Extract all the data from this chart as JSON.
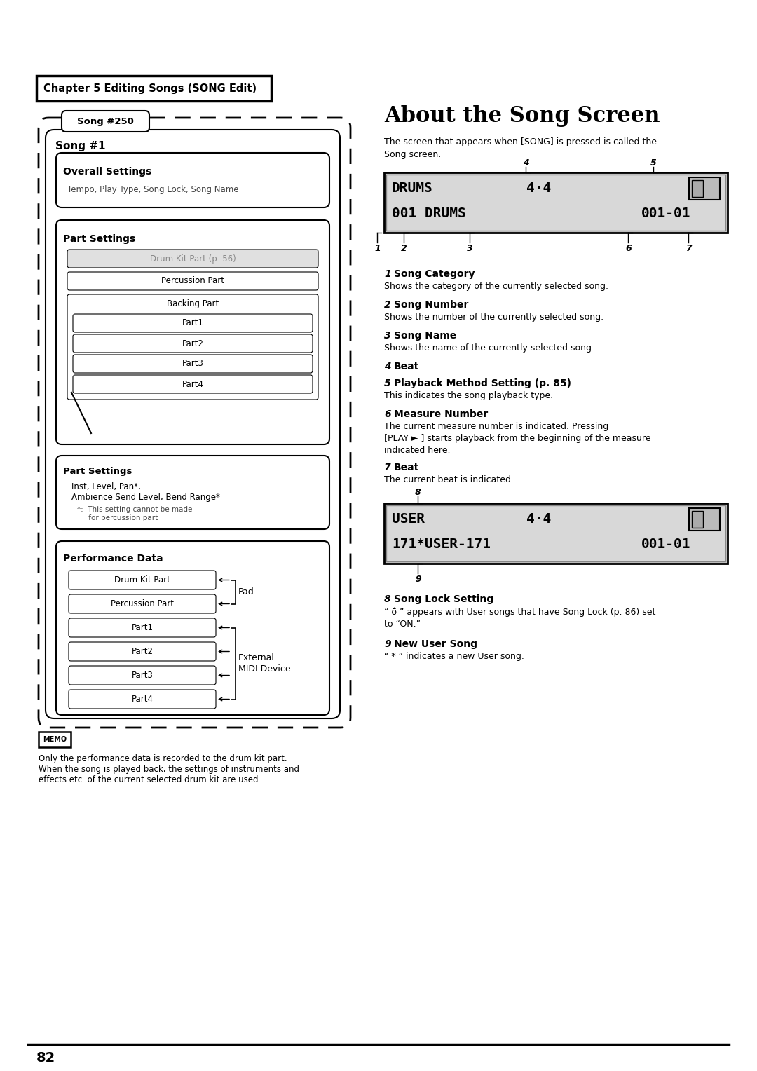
{
  "chapter_header": "Chapter 5 Editing Songs (SONG Edit)",
  "page_number": "82",
  "about_title": "About the Song Screen",
  "about_intro": "The screen that appears when [SONG] is pressed is called the\nSong screen.",
  "song250_label": "Song #250",
  "song1_label": "Song #1",
  "overall_settings_label": "Overall Settings",
  "overall_settings_content": "Tempo, Play Type, Song Lock, Song Name",
  "part_settings_label": "Part Settings",
  "part_settings_boxes_gray": "Drum Kit Part (p. 56)",
  "part_settings_boxes": [
    "Percussion Part",
    "Backing Part",
    "Part1",
    "Part2",
    "Part3",
    "Part4"
  ],
  "part_settings_note_label": "Part Settings",
  "part_settings_note_content": "Inst, Level, Pan*,\nAmbience Send Level, Bend Range*",
  "part_settings_asterisk": "*:  This setting cannot be made\n     for percussion part",
  "performance_data_label": "Performance Data",
  "performance_data_boxes": [
    "Drum Kit Part",
    "Percussion Part",
    "Part1",
    "Part2",
    "Part3",
    "Part4"
  ],
  "pad_label": "Pad",
  "external_midi_label": "External\nMIDI Device",
  "memo_text": "Only the performance data is recorded to the drum kit part.\nWhen the song is played back, the settings of instruments and\neffects etc. of the current selected drum kit are used.",
  "items": [
    {
      "num": "1",
      "title": "Song Category",
      "desc": "Shows the category of the currently selected song.",
      "lines": 1
    },
    {
      "num": "2",
      "title": "Song Number",
      "desc": "Shows the number of the currently selected song.",
      "lines": 1
    },
    {
      "num": "3",
      "title": "Song Name",
      "desc": "Shows the name of the currently selected song.",
      "lines": 1
    },
    {
      "num": "4",
      "title": "Beat",
      "desc": "",
      "lines": 0
    },
    {
      "num": "5",
      "title": "Playback Method Setting (p. 85)",
      "desc": "This indicates the song playback type.",
      "lines": 1
    },
    {
      "num": "6",
      "title": "Measure Number",
      "desc": "The current measure number is indicated. Pressing\n[PLAY ► ] starts playback from the beginning of the measure\nindicated here.",
      "lines": 3
    },
    {
      "num": "7",
      "title": "Beat",
      "desc": "The current beat is indicated.",
      "lines": 1
    },
    {
      "num": "8",
      "title": "Song Lock Setting",
      "desc": "“ ō̂ ” appears with User songs that have Song Lock (p. 86) set\nto “ON.”",
      "lines": 2
    },
    {
      "num": "9",
      "title": "New User Song",
      "desc": "“ * ” indicates a new User song.",
      "lines": 1
    }
  ]
}
